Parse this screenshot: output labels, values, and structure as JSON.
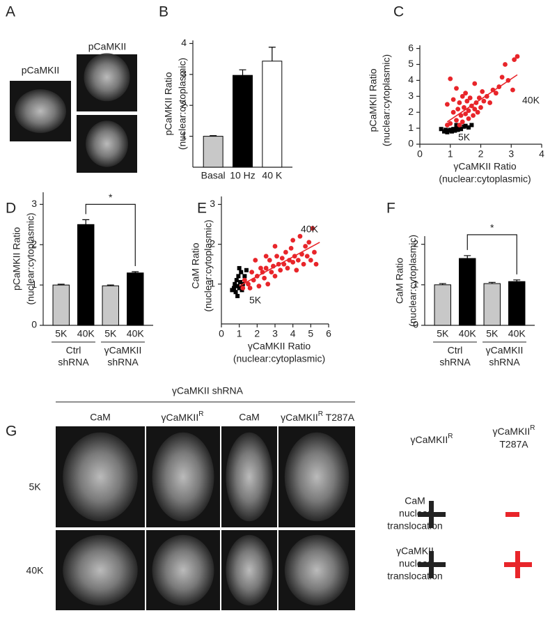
{
  "panel_a": {
    "label": "A",
    "image_labels": [
      "pCaMKII",
      "pCaMKII"
    ]
  },
  "chart_data": [
    {
      "type": "bar",
      "panel": "B",
      "ylabel": [
        "pCaMKII Ratio",
        "(nuclear:cytoplasmic)"
      ],
      "categories": [
        "Basal",
        "10 Hz",
        "40 K"
      ],
      "values": [
        1.0,
        2.97,
        3.43
      ],
      "errors": [
        0.02,
        0.18,
        0.45
      ],
      "colors": [
        "#c8c8c8",
        "#000000",
        "#ffffff"
      ],
      "ylim": [
        0,
        4.1
      ],
      "yticks": [
        1,
        2,
        3,
        4
      ]
    },
    {
      "type": "scatter",
      "panel": "C",
      "ylabel": [
        "pCaMKII Ratio",
        "(nuclear:cytoplasmic)"
      ],
      "xlabel": [
        "γCaMKII Ratio",
        "(nuclear:cytoplasmic)"
      ],
      "xlim": [
        0,
        4
      ],
      "xticks": [
        0,
        1,
        2,
        3,
        4
      ],
      "ylim": [
        0,
        6.2
      ],
      "yticks": [
        0,
        1,
        2,
        3,
        4,
        5,
        6
      ],
      "series": [
        {
          "name": "5K",
          "color": "#000000",
          "marker": "square",
          "x": [
            0.7,
            0.8,
            0.85,
            0.9,
            0.95,
            1.0,
            1.05,
            1.1,
            1.15,
            1.2,
            1.25,
            1.3,
            1.35,
            1.45,
            1.5,
            1.6,
            1.7,
            1.2
          ],
          "y": [
            0.95,
            0.8,
            0.9,
            0.75,
            0.85,
            0.9,
            0.8,
            0.95,
            0.85,
            1.0,
            0.9,
            1.05,
            0.95,
            1.1,
            1.15,
            1.05,
            1.2,
            1.2
          ]
        },
        {
          "name": "40K",
          "color": "#e8252a",
          "marker": "circle",
          "x": [
            1.0,
            1.1,
            1.1,
            1.2,
            1.2,
            1.25,
            1.3,
            1.3,
            1.35,
            1.4,
            1.4,
            1.45,
            1.5,
            1.5,
            1.55,
            1.6,
            1.6,
            1.65,
            1.7,
            1.75,
            1.8,
            1.8,
            1.85,
            1.9,
            1.95,
            2.0,
            2.05,
            2.1,
            2.2,
            2.3,
            2.4,
            2.5,
            2.6,
            2.7,
            2.8,
            2.9,
            3.05,
            3.1,
            3.2,
            1.0,
            0.9,
            0.9
          ],
          "y": [
            1.3,
            2.0,
            2.8,
            1.5,
            3.5,
            2.2,
            1.2,
            2.6,
            1.8,
            3.0,
            1.4,
            2.3,
            1.9,
            3.2,
            2.7,
            1.6,
            2.1,
            2.9,
            2.4,
            1.8,
            3.8,
            2.2,
            2.6,
            2.0,
            2.9,
            2.3,
            3.3,
            2.7,
            3.0,
            2.6,
            3.4,
            3.2,
            3.6,
            4.2,
            5.0,
            4.0,
            3.4,
            5.3,
            5.5,
            4.1,
            2.5,
            1.2
          ]
        }
      ],
      "fit": {
        "color": "#e8252a",
        "x": [
          0.9,
          3.2
        ],
        "y": [
          1.4,
          4.35
        ]
      }
    },
    {
      "type": "bar",
      "panel": "D",
      "ylabel": [
        "pCaMKII Ratio",
        "(nuclear:cytoplasmic)"
      ],
      "categories": [
        "5K",
        "40K",
        "5K",
        "40K"
      ],
      "values": [
        1.0,
        2.5,
        0.98,
        1.3
      ],
      "errors": [
        0.02,
        0.12,
        0.02,
        0.03
      ],
      "colors": [
        "#c8c8c8",
        "#000000",
        "#c8c8c8",
        "#000000"
      ],
      "ylim": [
        0,
        3.3
      ],
      "yticks": [
        0,
        1,
        2,
        3
      ],
      "groups": [
        [
          "Ctrl",
          "shRNA"
        ],
        [
          "γCaMKII",
          "shRNA"
        ]
      ],
      "significance": {
        "text": "*",
        "between": [
          1,
          3
        ]
      }
    },
    {
      "type": "scatter",
      "panel": "E",
      "ylabel": [
        "CaM Ratio",
        "(nuclear:cytoplasmic)"
      ],
      "xlabel": [
        "γCaMKII Ratio",
        "(nuclear:cytoplasmic)"
      ],
      "xlim": [
        0,
        6
      ],
      "xticks": [
        0,
        1,
        2,
        3,
        4,
        5,
        6
      ],
      "ylim": [
        0,
        3.2
      ],
      "yticks": [
        1,
        2,
        3
      ],
      "series": [
        {
          "name": "5K",
          "color": "#000000",
          "marker": "square",
          "x": [
            0.6,
            0.7,
            0.75,
            0.8,
            0.85,
            0.9,
            0.95,
            1.0,
            1.05,
            1.1,
            1.15,
            1.2,
            1.3,
            1.4,
            1.0,
            0.9
          ],
          "y": [
            0.85,
            0.9,
            1.0,
            0.8,
            1.1,
            0.95,
            1.2,
            0.9,
            1.05,
            1.3,
            0.85,
            1.0,
            1.2,
            1.35,
            1.4,
            0.7
          ]
        },
        {
          "name": "40K",
          "color": "#e8252a",
          "marker": "circle",
          "x": [
            1.2,
            1.3,
            1.5,
            1.6,
            1.7,
            1.8,
            2.0,
            2.1,
            2.2,
            2.3,
            2.4,
            2.5,
            2.6,
            2.7,
            2.8,
            2.9,
            3.0,
            3.1,
            3.2,
            3.3,
            3.4,
            3.5,
            3.6,
            3.7,
            3.8,
            3.9,
            4.0,
            4.1,
            4.2,
            4.3,
            4.4,
            4.5,
            4.6,
            4.7,
            4.8,
            4.9,
            5.0,
            5.1,
            5.2,
            5.3,
            3.0,
            2.5,
            1.9,
            4.0
          ],
          "y": [
            0.9,
            1.1,
            1.0,
            0.9,
            1.3,
            1.1,
            1.2,
            0.95,
            1.4,
            1.3,
            1.15,
            1.4,
            1.0,
            1.6,
            1.3,
            1.45,
            1.2,
            1.7,
            1.5,
            1.35,
            1.65,
            1.5,
            1.8,
            1.4,
            1.6,
            1.9,
            1.55,
            1.7,
            1.35,
            1.6,
            2.2,
            1.75,
            1.5,
            1.95,
            1.7,
            2.05,
            1.6,
            2.4,
            1.8,
            1.5,
            1.95,
            1.7,
            1.6,
            2.1
          ]
        }
      ],
      "fit": {
        "color": "#e8252a",
        "x": [
          1.0,
          5.5
        ],
        "y": [
          0.95,
          2.05
        ]
      }
    },
    {
      "type": "bar",
      "panel": "F",
      "ylabel": [
        "CaM Ratio",
        "(nuclear:cytoplasmic)"
      ],
      "categories": [
        "5K",
        "40K",
        "5K",
        "40K"
      ],
      "values": [
        1.0,
        1.65,
        1.03,
        1.08
      ],
      "errors": [
        0.03,
        0.07,
        0.03,
        0.04
      ],
      "colors": [
        "#c8c8c8",
        "#000000",
        "#c8c8c8",
        "#000000"
      ],
      "ylim": [
        0,
        2.2
      ],
      "yticks": [
        0,
        1,
        2
      ],
      "groups": [
        [
          "Ctrl",
          "shRNA"
        ],
        [
          "γCaMKII",
          "shRNA"
        ]
      ],
      "significance": {
        "text": "*",
        "between": [
          1,
          3
        ]
      }
    }
  ],
  "panel_g": {
    "label": "G",
    "header": "γCaMKII shRNA",
    "columns": [
      {
        "text": "CaM"
      },
      {
        "text": "γCaMKII",
        "sup": "R"
      },
      {
        "text": "CaM"
      },
      {
        "text": "γCaMKII",
        "sup": "R",
        "after": " T287A"
      }
    ],
    "rows": [
      "5K",
      "40K"
    ],
    "summary": {
      "columns": [
        {
          "text": "γCaMKII",
          "sup": "R"
        },
        {
          "text": "γCaMKII",
          "sup": "R",
          "line2": "T287A"
        }
      ],
      "rows": [
        [
          "CaM",
          "nuclear",
          "translocation"
        ],
        [
          "γCaMKII",
          "nuclear",
          "translocation"
        ]
      ]
    }
  }
}
